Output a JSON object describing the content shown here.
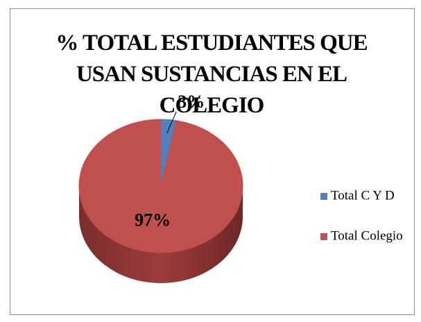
{
  "chart_data": {
    "type": "pie",
    "title": "% TOTAL ESTUDIANTES QUE USAN SUSTANCIAS EN EL COLEGIO",
    "categories": [
      "Total C Y D",
      "Total Colegio"
    ],
    "values": [
      3,
      97
    ],
    "value_labels": [
      "3%",
      "97%"
    ],
    "colors": [
      "#4f81bd",
      "#c0504d"
    ],
    "legend": "right"
  }
}
